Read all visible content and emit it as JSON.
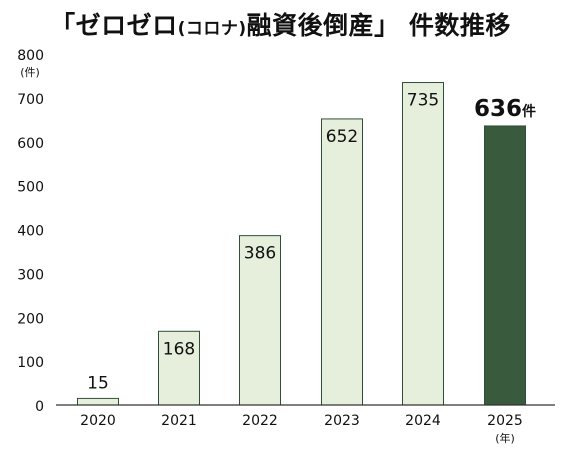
{
  "chart_data": {
    "type": "bar",
    "title": {
      "lead": "「ゼロゼロ",
      "paren": "(コロナ)",
      "rest": "融資後倒産」 件数推移"
    },
    "y_unit": "(件)",
    "x_unit": "(年)",
    "ylim": [
      0,
      800
    ],
    "yticks": [
      0,
      100,
      200,
      300,
      400,
      500,
      600,
      700,
      800
    ],
    "grid": false,
    "categories": [
      "2020",
      "2021",
      "2022",
      "2023",
      "2024",
      "2025"
    ],
    "values": [
      15,
      168,
      386,
      652,
      735,
      636
    ],
    "value_labels": [
      "15",
      "168",
      "386",
      "652",
      "735",
      "636"
    ],
    "highlight_suffix": "件",
    "colors": {
      "bar_fill": "#e5efdb",
      "bar_stroke": "#2f4f36",
      "highlight_fill": "#3a5a3e",
      "axis": "#333333",
      "text": "#111111"
    }
  }
}
